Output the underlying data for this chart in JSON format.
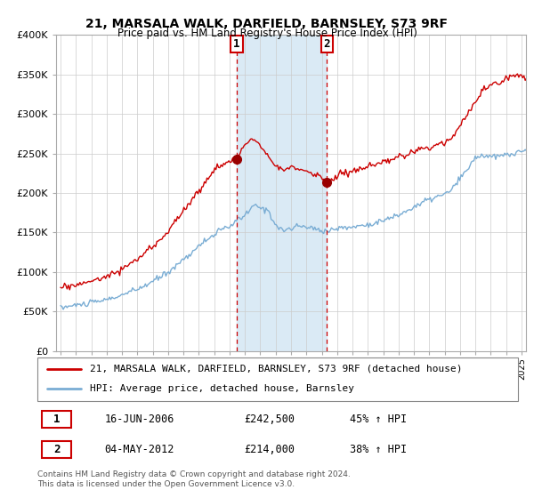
{
  "title": "21, MARSALA WALK, DARFIELD, BARNSLEY, S73 9RF",
  "subtitle": "Price paid vs. HM Land Registry's House Price Index (HPI)",
  "legend_line1": "21, MARSALA WALK, DARFIELD, BARNSLEY, S73 9RF (detached house)",
  "legend_line2": "HPI: Average price, detached house, Barnsley",
  "annotation1_label": "1",
  "annotation1_date": "16-JUN-2006",
  "annotation1_price": "£242,500",
  "annotation1_hpi": "45% ↑ HPI",
  "annotation2_label": "2",
  "annotation2_date": "04-MAY-2012",
  "annotation2_price": "£214,000",
  "annotation2_hpi": "38% ↑ HPI",
  "footer": "Contains HM Land Registry data © Crown copyright and database right 2024.\nThis data is licensed under the Open Government Licence v3.0.",
  "red_color": "#cc0000",
  "blue_color": "#7aadd4",
  "shade_color": "#daeaf5",
  "annotation_box_color": "#cc0000",
  "ylim_min": 0,
  "ylim_max": 400000,
  "yticks": [
    0,
    50000,
    100000,
    150000,
    200000,
    250000,
    300000,
    350000,
    400000
  ],
  "ytick_labels": [
    "£0",
    "£50K",
    "£100K",
    "£150K",
    "£200K",
    "£250K",
    "£300K",
    "£350K",
    "£400K"
  ],
  "marker1_x": 2006.46,
  "marker1_y": 242500,
  "marker2_x": 2012.34,
  "marker2_y": 214000,
  "vline1_x": 2006.46,
  "vline2_x": 2012.34,
  "xmin": 1994.7,
  "xmax": 2025.3
}
